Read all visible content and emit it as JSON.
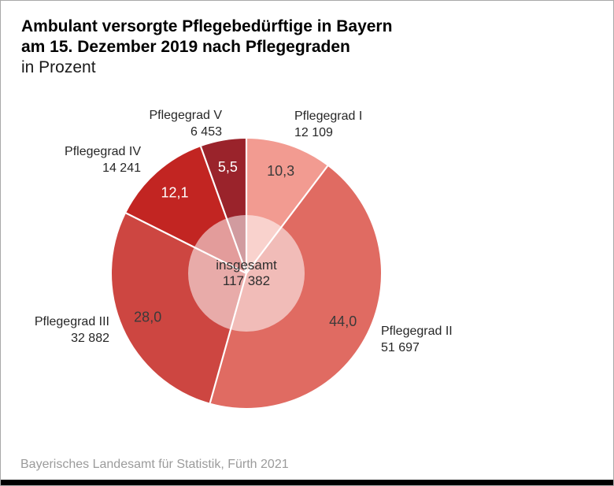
{
  "title": {
    "line1": "Ambulant versorgte Pflegebedürftige in Bayern",
    "line2": "am 15. Dezember 2019 nach Pflegegraden",
    "line3": "in Prozent"
  },
  "footer": {
    "source": "Bayerisches Landesamt für Statistik, Fürth 2021"
  },
  "chart_data": {
    "type": "pie",
    "title": "Ambulant versorgte Pflegebedürftige in Bayern am 15. Dezember 2019 nach Pflegegraden",
    "unit": "Prozent",
    "start_angle_deg": 0,
    "direction": "clockwise",
    "divider_color": "#ffffff",
    "overlay": {
      "color": "#ffffff",
      "opacity": 0.55
    },
    "center_label": {
      "line1": "insgesamt",
      "line2": "117 382",
      "total": 117382
    },
    "slices": [
      {
        "label": "Pflegegrad I",
        "count": 12109,
        "count_label": "12 109",
        "percent": 10.3,
        "percent_label": "10,3",
        "color": "#f29b91",
        "text_color": "#3a3a3a"
      },
      {
        "label": "Pflegegrad II",
        "count": 51697,
        "count_label": "51 697",
        "percent": 44.0,
        "percent_label": "44,0",
        "color": "#e06b62",
        "text_color": "#3a3a3a"
      },
      {
        "label": "Pflegegrad III",
        "count": 32882,
        "count_label": "32 882",
        "percent": 28.0,
        "percent_label": "28,0",
        "color": "#cd4641",
        "text_color": "#3a3a3a"
      },
      {
        "label": "Pflegegrad IV",
        "count": 14241,
        "count_label": "14 241",
        "percent": 12.1,
        "percent_label": "12,1",
        "color": "#c22522",
        "text_color": "#ffffff"
      },
      {
        "label": "Pflegegrad V",
        "count": 6453,
        "count_label": "6 453",
        "percent": 5.5,
        "percent_label": "5,5",
        "color": "#9a232b",
        "text_color": "#ffffff"
      }
    ]
  }
}
